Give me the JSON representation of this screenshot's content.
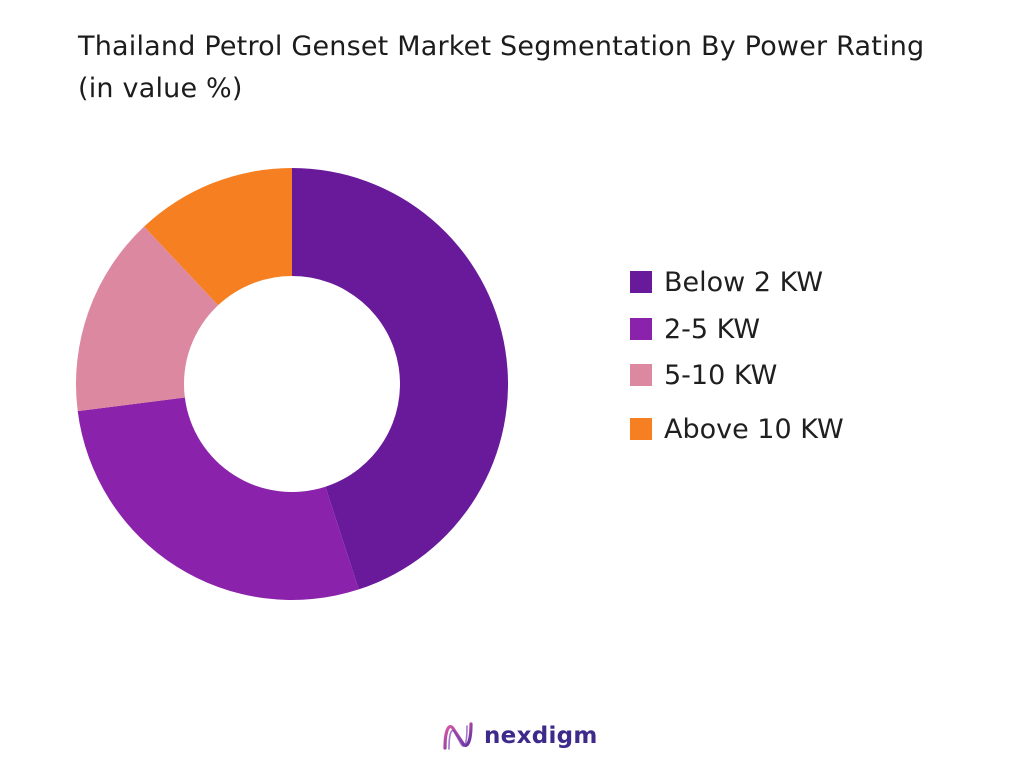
{
  "title": "Thailand Petrol Genset Market Segmentation By Power Rating (in value %)",
  "chart_data": {
    "type": "pie",
    "donut": true,
    "title": "Thailand Petrol Genset Market Segmentation By Power Rating (in value %)",
    "categories": [
      "Below 2 KW",
      "2-5 KW",
      "5-10 KW",
      "Above 10 KW"
    ],
    "values": [
      45,
      28,
      15,
      12
    ],
    "colors": [
      "#681a9a",
      "#8b22ab",
      "#dd88a1",
      "#f57f21"
    ],
    "legend_position": "right"
  },
  "logo": {
    "text": "nexdigm"
  }
}
